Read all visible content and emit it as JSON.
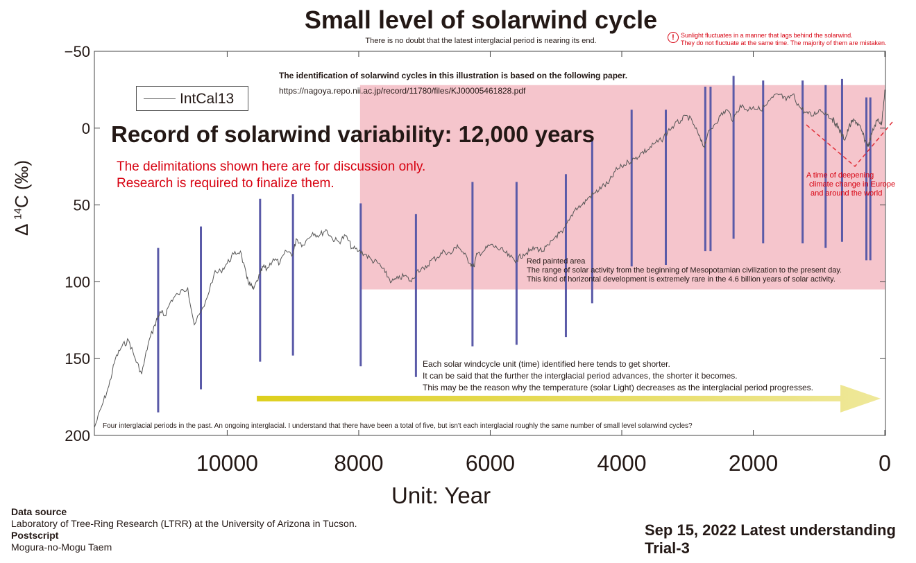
{
  "header": {
    "title": "Small level of solarwind cycle",
    "subtitle": "There is no doubt that the latest interglacial period is nearing its end."
  },
  "warning": {
    "icon": "exclamation-circle-icon",
    "line1": "Sunlight fluctuates in a manner that lags behind the solarwind.",
    "line2": "They do not fluctuate at the same time. The majority of them are mistaken."
  },
  "annotations": {
    "paper_heading": "The identification of solarwind cycles in this illustration is based on the following paper.",
    "paper_url": "https://nagoya.repo.nii.ac.jp/record/11780/files/KJ00005461828.pdf",
    "record_title": "Record of solarwind variability: 12,000 years",
    "red_note_1": "The delimitations shown here are for discussion only.",
    "red_note_2": "Research is required to finalize them.",
    "deepening_1": "A time of deepening",
    "deepening_2": "climate change in Europe",
    "deepening_3": "and around the world",
    "red_area_1": "Red painted area",
    "red_area_2": "The range of solar activity from the beginning of Mesopotamian civilization to the present day.",
    "red_area_3": "This kind of horizontal development is extremely rare in the 4.6 billion years of solar activity.",
    "unit_1": "Each solar windcycle unit (time) identified here tends to get shorter.",
    "unit_2": "It can be said that the further the interglacial period advances, the shorter it becomes.",
    "unit_3": "This may be the reason why the temperature (solar Light) decreases as the interglacial period progresses.",
    "bottom_note": "Four interglacial periods in the past. An ongoing interglacial. I understand that there have been a total of five, but isn't each interglacial roughly the same number of small level solarwind cycles?"
  },
  "credits": {
    "source_heading": "Data source",
    "source_text": "Laboratory of Tree-Ring Research (LTRR) at the University of Arizona in Tucson.",
    "postscript_heading": "Postscript",
    "postscript_text": "Mogura-no-Mogu Taem"
  },
  "stamp": {
    "date_line": "Sep 15, 2022 Latest understanding",
    "trial_line": "Trial-3"
  },
  "colors": {
    "curve": "#555555",
    "cycle_line": "#5a5aa8",
    "red_area": "#f5c5cc",
    "red_text": "#d7000f",
    "arrow_start": "#ddcf1c",
    "arrow_end": "#efe89a",
    "deepening_line": "#e0303a"
  },
  "chart_data": {
    "type": "line",
    "xlabel": "Unit: Year",
    "ylabel_prefix": "Δ",
    "ylabel_sup": "14",
    "ylabel_main": "C (‰)",
    "x_reversed": true,
    "xlim": [
      12020,
      -10
    ],
    "ylim": [
      -50,
      200
    ],
    "y_inverted": true,
    "x_ticks": [
      10000,
      8000,
      6000,
      4000,
      2000,
      0
    ],
    "x_tick_labels": [
      "10000",
      "8000",
      "6000",
      "4000",
      "2000",
      "0"
    ],
    "y_ticks": [
      -50,
      0,
      50,
      100,
      150,
      200
    ],
    "y_tick_labels": [
      "−50",
      "0",
      "50",
      "100",
      "150",
      "200"
    ],
    "legend": {
      "position": "top-left",
      "entries": [
        "IntCal13"
      ]
    },
    "series": [
      {
        "name": "IntCal13",
        "x": [
          12020,
          11900,
          11800,
          11700,
          11600,
          11500,
          11400,
          11300,
          11200,
          11100,
          11050,
          11000,
          10950,
          10850,
          10750,
          10600,
          10500,
          10350,
          10200,
          10100,
          10000,
          9900,
          9800,
          9700,
          9650,
          9600,
          9500,
          9450,
          9400,
          9300,
          9200,
          9100,
          9000,
          8950,
          8850,
          8700,
          8600,
          8500,
          8400,
          8300,
          8200,
          8100,
          8000,
          7900,
          7800,
          7700,
          7600,
          7500,
          7400,
          7300,
          7200,
          7100,
          7000,
          6900,
          6800,
          6700,
          6600,
          6500,
          6400,
          6300,
          6250,
          6200,
          6100,
          6000,
          5900,
          5800,
          5700,
          5600,
          5500,
          5400,
          5300,
          5200,
          5100,
          5000,
          4900,
          4800,
          4700,
          4600,
          4500,
          4400,
          4300,
          4200,
          4100,
          4000,
          3900,
          3800,
          3700,
          3600,
          3500,
          3400,
          3300,
          3200,
          3100,
          3000,
          2900,
          2800,
          2750,
          2700,
          2600,
          2500,
          2400,
          2300,
          2200,
          2100,
          2000,
          1900,
          1800,
          1700,
          1600,
          1500,
          1400,
          1300,
          1200,
          1100,
          1000,
          900,
          800,
          750,
          700,
          650,
          600,
          550,
          500,
          450,
          400,
          350,
          300,
          250,
          200,
          150,
          100,
          50,
          0
        ],
        "y": [
          195,
          180,
          168,
          150,
          142,
          138,
          150,
          160,
          140,
          128,
          122,
          120,
          122,
          112,
          108,
          104,
          128,
          116,
          95,
          93,
          88,
          82,
          80,
          98,
          102,
          105,
          95,
          90,
          92,
          85,
          88,
          80,
          82,
          72,
          76,
          68,
          70,
          66,
          72,
          74,
          70,
          78,
          80,
          82,
          86,
          88,
          94,
          100,
          98,
          96,
          100,
          92,
          92,
          86,
          84,
          80,
          82,
          76,
          82,
          88,
          90,
          82,
          80,
          76,
          78,
          80,
          84,
          86,
          82,
          80,
          78,
          80,
          76,
          70,
          68,
          60,
          52,
          50,
          45,
          42,
          38,
          36,
          28,
          25,
          22,
          20,
          16,
          14,
          10,
          8,
          2,
          -2,
          -5,
          -8,
          -2,
          8,
          12,
          5,
          -2,
          -8,
          -12,
          -5,
          -15,
          -12,
          -14,
          -12,
          -15,
          -20,
          -22,
          -18,
          -22,
          -14,
          -10,
          -8,
          -12,
          -10,
          -6,
          -3,
          0,
          5,
          7,
          0,
          -4,
          -5,
          -2,
          2,
          8,
          12,
          4,
          -2,
          -6,
          -2,
          -25
        ]
      }
    ],
    "cycle_markers": [
      {
        "x": 11050,
        "y_top": 78,
        "y_bottom": 185
      },
      {
        "x": 10400,
        "y_top": 64,
        "y_bottom": 170
      },
      {
        "x": 9500,
        "y_top": 46,
        "y_bottom": 152
      },
      {
        "x": 9000,
        "y_top": 43,
        "y_bottom": 148
      },
      {
        "x": 7970,
        "y_top": 49,
        "y_bottom": 155
      },
      {
        "x": 7130,
        "y_top": 56,
        "y_bottom": 162
      },
      {
        "x": 6270,
        "y_top": 35,
        "y_bottom": 142
      },
      {
        "x": 5600,
        "y_top": 35,
        "y_bottom": 141
      },
      {
        "x": 4850,
        "y_top": 30,
        "y_bottom": 136
      },
      {
        "x": 4450,
        "y_top": 7,
        "y_bottom": 114
      },
      {
        "x": 3850,
        "y_top": -12,
        "y_bottom": 90
      },
      {
        "x": 3330,
        "y_top": -12,
        "y_bottom": 89
      },
      {
        "x": 2730,
        "y_top": -27,
        "y_bottom": 80
      },
      {
        "x": 2650,
        "y_top": -27,
        "y_bottom": 80
      },
      {
        "x": 2300,
        "y_top": -34,
        "y_bottom": 72
      },
      {
        "x": 1850,
        "y_top": -31,
        "y_bottom": 75
      },
      {
        "x": 1250,
        "y_top": -31,
        "y_bottom": 75
      },
      {
        "x": 900,
        "y_top": -28,
        "y_bottom": 78
      },
      {
        "x": 650,
        "y_top": -32,
        "y_bottom": 74
      },
      {
        "x": 280,
        "y_top": -20,
        "y_bottom": 86
      },
      {
        "x": 220,
        "y_top": -20,
        "y_bottom": 86
      }
    ],
    "red_area": {
      "x_from": 7980,
      "x_to": 0,
      "y_from": -28,
      "y_to": 105
    },
    "arrow": {
      "x_from": 9550,
      "x_to": 0,
      "y": 176
    }
  }
}
